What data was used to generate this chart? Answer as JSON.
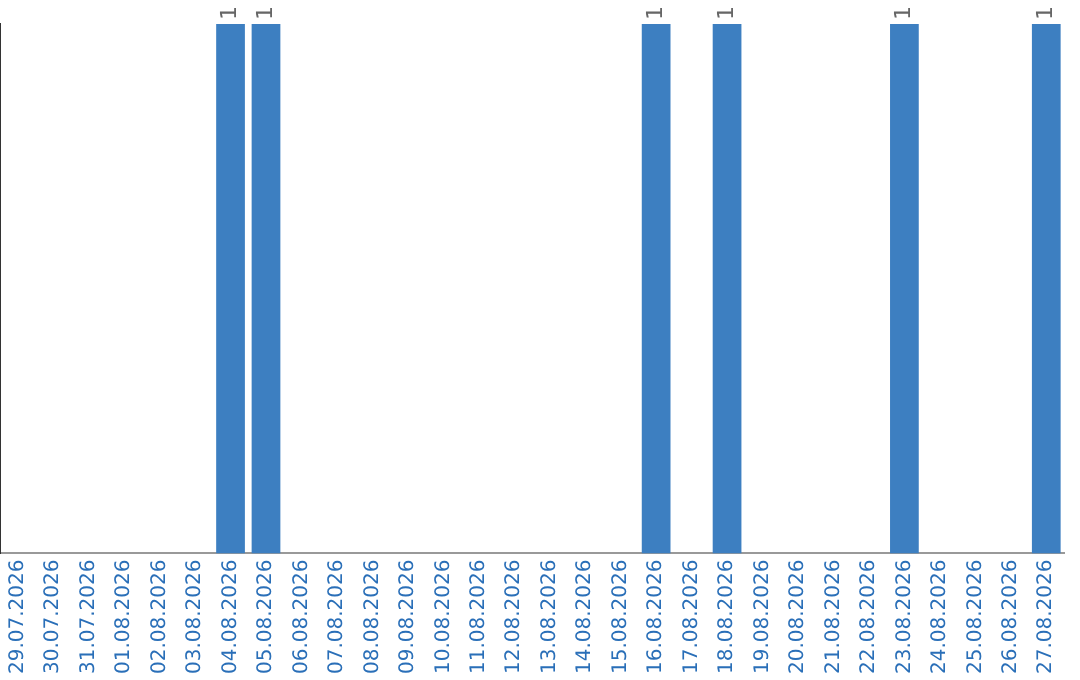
{
  "chart_data": {
    "type": "bar",
    "categories": [
      "29.07.2026",
      "30.07.2026",
      "31.07.2026",
      "01.08.2026",
      "02.08.2026",
      "03.08.2026",
      "04.08.2026",
      "05.08.2026",
      "06.08.2026",
      "07.08.2026",
      "08.08.2026",
      "09.08.2026",
      "10.08.2026",
      "11.08.2026",
      "12.08.2026",
      "13.08.2026",
      "14.08.2026",
      "15.08.2026",
      "16.08.2026",
      "17.08.2026",
      "18.08.2026",
      "19.08.2026",
      "20.08.2026",
      "21.08.2026",
      "22.08.2026",
      "23.08.2026",
      "24.08.2026",
      "25.08.2026",
      "26.08.2026",
      "27.08.2026"
    ],
    "values": [
      0,
      0,
      0,
      0,
      0,
      0,
      1,
      1,
      0,
      0,
      0,
      0,
      0,
      0,
      0,
      0,
      0,
      0,
      1,
      0,
      1,
      0,
      0,
      0,
      0,
      1,
      0,
      0,
      0,
      1
    ],
    "value_labels": [
      null,
      null,
      null,
      null,
      null,
      null,
      "1",
      "1",
      null,
      null,
      null,
      null,
      null,
      null,
      null,
      null,
      null,
      null,
      "1",
      null,
      "1",
      null,
      null,
      null,
      null,
      "1",
      null,
      null,
      null,
      "1"
    ],
    "color": "#3d7fc1",
    "grid": false,
    "legend": false,
    "tick_labels": "x"
  }
}
